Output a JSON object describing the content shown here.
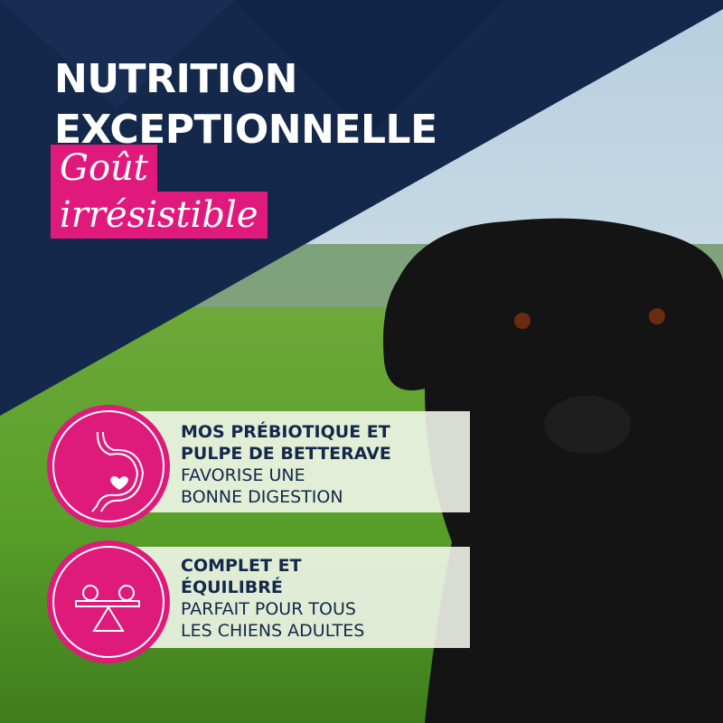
{
  "headline": {
    "line1": "NUTRITION",
    "line2": "EXCEPTIONNELLE",
    "script1": "Goût",
    "script2": "irrésistible"
  },
  "features": [
    {
      "icon": "stomach-heart-icon",
      "title1": "MOS PRÉBIOTIQUE ET",
      "title2": "PULPE DE BETTERAVE",
      "desc1": "FAVORISE UNE",
      "desc2": "BONNE DIGESTION"
    },
    {
      "icon": "balance-scale-icon",
      "title1": "COMPLET ET",
      "title2": "ÉQUILIBRÉ",
      "desc1": "PARFAIT POUR TOUS",
      "desc2": "LES CHIENS ADULTES"
    }
  ],
  "colors": {
    "navy": "#13284a",
    "pink": "#e01a7c",
    "grass": "#5a9a2a",
    "sky": "#c9dbe6"
  }
}
